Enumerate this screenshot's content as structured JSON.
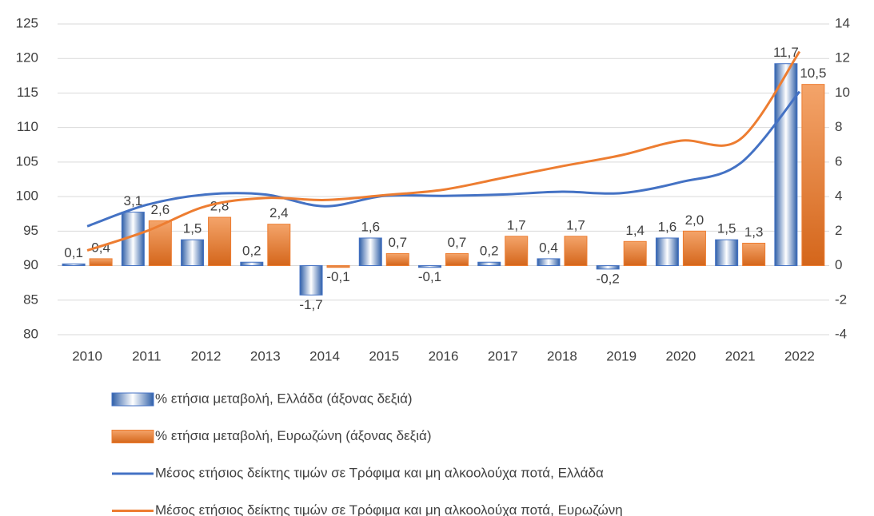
{
  "chart_data": {
    "type": "combo",
    "categories": [
      "2010",
      "2011",
      "2012",
      "2013",
      "2014",
      "2015",
      "2016",
      "2017",
      "2018",
      "2019",
      "2020",
      "2021",
      "2022"
    ],
    "series": [
      {
        "name": "% ετήσια μεταβολή, Ελλάδα (άξονας δεξιά)",
        "type": "bar",
        "axis": "y2",
        "color": "#4472c4",
        "values": [
          0.1,
          3.1,
          1.5,
          0.2,
          -1.7,
          1.6,
          -0.1,
          0.2,
          0.4,
          -0.2,
          1.6,
          1.5,
          11.7
        ],
        "value_labels": [
          "0,1",
          "3,1",
          "1,5",
          "0,2",
          "-1,7",
          "1,6",
          "-0,1",
          "0,2",
          "0,4",
          "-0,2",
          "1,6",
          "1,5",
          "11,7"
        ]
      },
      {
        "name": "% ετήσια μεταβολή, Ευρωζώνη (άξονας δεξιά)",
        "type": "bar",
        "axis": "y2",
        "color": "#ed7d31",
        "values": [
          0.4,
          2.6,
          2.8,
          2.4,
          -0.1,
          0.7,
          0.7,
          1.7,
          1.7,
          1.4,
          2.0,
          1.3,
          10.5
        ],
        "value_labels": [
          "0,4",
          "2,6",
          "2,8",
          "2,4",
          "-0,1",
          "0,7",
          "0,7",
          "1,7",
          "1,7",
          "1,4",
          "2,0",
          "1,3",
          "10,5"
        ]
      },
      {
        "name": "Μέσος ετήσιος δείκτης τιμών σε Τρόφιμα και μη αλκοολούχα ποτά, Ελλάδα",
        "type": "line",
        "color": "#4472c4",
        "values": [
          95.7,
          98.8,
          100.3,
          100.3,
          98.6,
          100.1,
          100.1,
          100.3,
          100.7,
          100.5,
          102.1,
          104.8,
          115.2
        ]
      },
      {
        "name": "Μέσος ετήσιος δείκτης τιμών σε Τρόφιμα και μη αλκοολούχα ποτά, Ευρωζώνη",
        "type": "line",
        "color": "#ed7d31",
        "values": [
          92.2,
          95.0,
          98.6,
          99.8,
          99.5,
          100.2,
          101.0,
          102.7,
          104.4,
          106.0,
          108.1,
          108.3,
          121.0
        ]
      }
    ],
    "ylim": [
      80,
      125
    ],
    "yticks": [
      80,
      85,
      90,
      95,
      100,
      105,
      110,
      115,
      120,
      125
    ],
    "y2lim": [
      -4,
      14
    ],
    "y2ticks": [
      -4,
      -2,
      0,
      2,
      4,
      6,
      8,
      10,
      12,
      14
    ],
    "grid": true
  }
}
